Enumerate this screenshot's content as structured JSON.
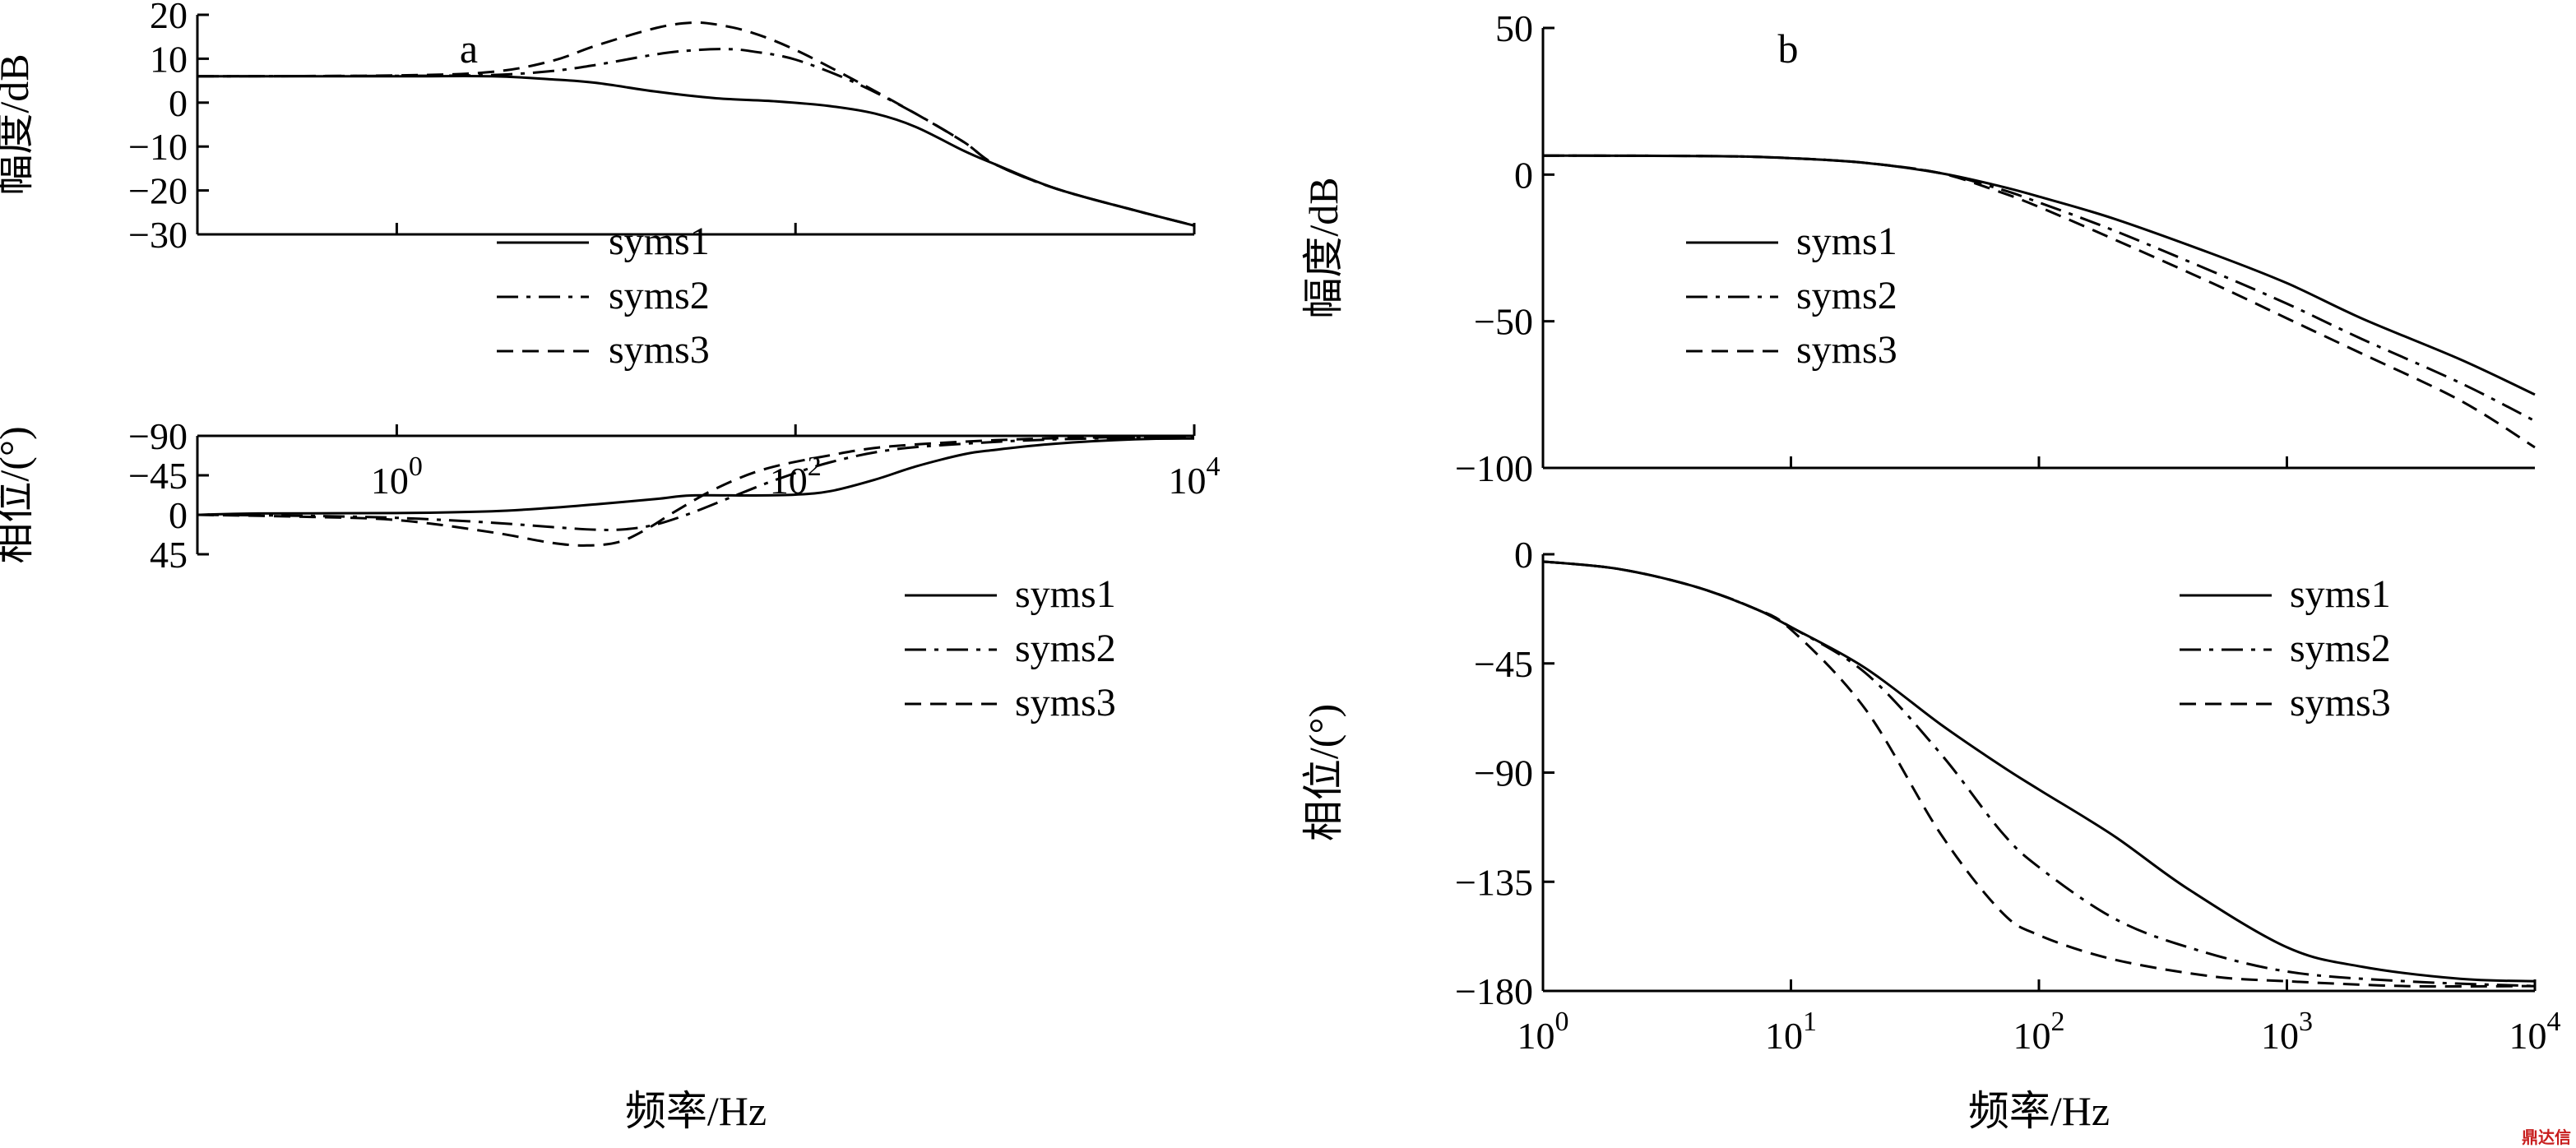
{
  "colors": {
    "line": "#000000",
    "watermark": "#c81e1e"
  },
  "watermark": {
    "text": "鼎达信"
  },
  "chart_data": [
    {
      "id": "a-mag",
      "type": "line",
      "panel_label": "a",
      "title": "",
      "xlabel": "",
      "ylabel": "幅度/dB",
      "xscale": "log",
      "xlim": [
        0.1,
        10000
      ],
      "ylim": [
        -30,
        20
      ],
      "xticks": [
        1,
        100,
        10000
      ],
      "xtick_labels": [],
      "yticks": [
        20,
        10,
        0,
        -10,
        -20,
        -30
      ],
      "ytick_labels": [
        "20",
        "10",
        "0",
        "−10",
        "−20",
        "−30"
      ],
      "legend": {
        "position": "center",
        "entries": [
          "syms1",
          "syms2",
          "syms3"
        ]
      },
      "series": [
        {
          "name": "syms1",
          "style": "solid",
          "points": [
            [
              0.1,
              6
            ],
            [
              1,
              6
            ],
            [
              3,
              6
            ],
            [
              6,
              5.3
            ],
            [
              10,
              4.5
            ],
            [
              20,
              2.5
            ],
            [
              40,
              1
            ],
            [
              80,
              0.3
            ],
            [
              150,
              -0.8
            ],
            [
              250,
              -2.5
            ],
            [
              400,
              -5.5
            ],
            [
              700,
              -11
            ],
            [
              1000,
              -14
            ],
            [
              2000,
              -19.5
            ],
            [
              5000,
              -24.5
            ],
            [
              10000,
              -28
            ]
          ]
        },
        {
          "name": "syms2",
          "style": "dashdot",
          "points": [
            [
              0.1,
              6
            ],
            [
              1,
              6.1
            ],
            [
              3,
              6.3
            ],
            [
              6,
              7.2
            ],
            [
              10,
              8.6
            ],
            [
              20,
              11
            ],
            [
              30,
              11.9
            ],
            [
              45,
              12.2
            ],
            [
              60,
              11.7
            ],
            [
              100,
              9.8
            ],
            [
              200,
              4.5
            ],
            [
              400,
              -2.5
            ],
            [
              700,
              -9
            ],
            [
              1000,
              -14
            ],
            [
              2000,
              -19.5
            ],
            [
              5000,
              -24.5
            ],
            [
              10000,
              -28
            ]
          ]
        },
        {
          "name": "syms3",
          "style": "dashed",
          "points": [
            [
              0.1,
              6
            ],
            [
              1,
              6.2
            ],
            [
              3,
              7
            ],
            [
              6,
              9.5
            ],
            [
              10,
              13
            ],
            [
              20,
              17
            ],
            [
              30,
              18.2
            ],
            [
              40,
              17.8
            ],
            [
              60,
              16
            ],
            [
              100,
              12
            ],
            [
              200,
              5
            ],
            [
              400,
              -2.5
            ],
            [
              700,
              -9
            ],
            [
              1000,
              -14
            ],
            [
              2000,
              -19.5
            ],
            [
              5000,
              -24.5
            ],
            [
              10000,
              -28
            ]
          ]
        }
      ]
    },
    {
      "id": "a-phase",
      "type": "line",
      "panel_label": "",
      "title": "",
      "xlabel": "频率/Hz",
      "ylabel": "相位/(°)",
      "xscale": "log",
      "xlim": [
        0.1,
        10000
      ],
      "ylim": [
        -90,
        45
      ],
      "xticks": [
        1,
        100,
        10000
      ],
      "xtick_labels": [
        {
          "base": "10",
          "exp": "0"
        },
        {
          "base": "10",
          "exp": "2"
        },
        {
          "base": "10",
          "exp": "4"
        }
      ],
      "yticks": [
        45,
        0,
        -45,
        -90
      ],
      "ytick_labels": [
        "45",
        "0",
        "−45",
        "−90"
      ],
      "legend": {
        "position": "top-right",
        "entries": [
          "syms1",
          "syms2",
          "syms3"
        ]
      },
      "series": [
        {
          "name": "syms1",
          "style": "solid",
          "points": [
            [
              0.1,
              0
            ],
            [
              0.2,
              -1.5
            ],
            [
              1,
              -2
            ],
            [
              3,
              -4
            ],
            [
              6,
              -8
            ],
            [
              10,
              -12
            ],
            [
              20,
              -18
            ],
            [
              30,
              -22
            ],
            [
              60,
              -22
            ],
            [
              100,
              -23
            ],
            [
              150,
              -27
            ],
            [
              250,
              -40
            ],
            [
              400,
              -55
            ],
            [
              700,
              -69
            ],
            [
              1000,
              -74
            ],
            [
              2000,
              -81
            ],
            [
              5000,
              -86
            ],
            [
              10000,
              -87
            ]
          ]
        },
        {
          "name": "syms2",
          "style": "dashdot",
          "points": [
            [
              0.1,
              0
            ],
            [
              0.3,
              1
            ],
            [
              1,
              3.5
            ],
            [
              3,
              9
            ],
            [
              6,
              14
            ],
            [
              10,
              17
            ],
            [
              14,
              16.5
            ],
            [
              20,
              11
            ],
            [
              30,
              -2
            ],
            [
              50,
              -22
            ],
            [
              80,
              -40
            ],
            [
              150,
              -60
            ],
            [
              300,
              -74
            ],
            [
              700,
              -81
            ],
            [
              2000,
              -86
            ],
            [
              10000,
              -89
            ]
          ]
        },
        {
          "name": "syms3",
          "style": "dashed",
          "points": [
            [
              0.1,
              0
            ],
            [
              0.3,
              2
            ],
            [
              1,
              6
            ],
            [
              3,
              20
            ],
            [
              6,
              32
            ],
            [
              9,
              35
            ],
            [
              13,
              31
            ],
            [
              18,
              16
            ],
            [
              25,
              -4
            ],
            [
              40,
              -30
            ],
            [
              70,
              -52
            ],
            [
              150,
              -68
            ],
            [
              300,
              -78
            ],
            [
              1000,
              -85
            ],
            [
              3000,
              -88
            ],
            [
              10000,
              -89
            ]
          ]
        }
      ]
    },
    {
      "id": "b-mag",
      "type": "line",
      "panel_label": "b",
      "title": "",
      "xlabel": "",
      "ylabel": "幅度/dB",
      "xscale": "log",
      "xlim": [
        1,
        10000
      ],
      "ylim": [
        -100,
        50
      ],
      "xticks": [
        10,
        100,
        1000
      ],
      "xtick_labels": [],
      "yticks": [
        50,
        0,
        -50,
        -100
      ],
      "ytick_labels": [
        "50",
        "0",
        "−50",
        "−100"
      ],
      "legend": {
        "position": "top-right",
        "entries": [
          "syms1",
          "syms2",
          "syms3"
        ]
      },
      "series": [
        {
          "name": "syms1",
          "style": "solid",
          "points": [
            [
              1,
              6.5
            ],
            [
              5,
              6.3
            ],
            [
              10,
              5.6
            ],
            [
              20,
              4
            ],
            [
              40,
              0.5
            ],
            [
              70,
              -4
            ],
            [
              100,
              -7.5
            ],
            [
              200,
              -15
            ],
            [
              500,
              -27
            ],
            [
              1000,
              -37
            ],
            [
              2000,
              -49
            ],
            [
              5000,
              -63
            ],
            [
              10000,
              -75
            ]
          ]
        },
        {
          "name": "syms2",
          "style": "dashdot",
          "points": [
            [
              1,
              6.5
            ],
            [
              5,
              6.3
            ],
            [
              10,
              5.6
            ],
            [
              20,
              4
            ],
            [
              40,
              0.5
            ],
            [
              70,
              -5
            ],
            [
              100,
              -9.5
            ],
            [
              200,
              -19
            ],
            [
              500,
              -33
            ],
            [
              1000,
              -44
            ],
            [
              2000,
              -56
            ],
            [
              5000,
              -71
            ],
            [
              10000,
              -84
            ]
          ]
        },
        {
          "name": "syms3",
          "style": "dashed",
          "points": [
            [
              1,
              6.5
            ],
            [
              5,
              6.3
            ],
            [
              10,
              5.6
            ],
            [
              20,
              4
            ],
            [
              40,
              0.5
            ],
            [
              70,
              -6
            ],
            [
              100,
              -11
            ],
            [
              200,
              -22
            ],
            [
              500,
              -37
            ],
            [
              1000,
              -49
            ],
            [
              2000,
              -61
            ],
            [
              5000,
              -77
            ],
            [
              10000,
              -93
            ]
          ]
        }
      ]
    },
    {
      "id": "b-phase",
      "type": "line",
      "panel_label": "",
      "title": "",
      "xlabel": "频率/Hz",
      "ylabel": "相位/(°)",
      "xscale": "log",
      "xlim": [
        1,
        10000
      ],
      "ylim": [
        -180,
        0
      ],
      "xticks": [
        1,
        10,
        100,
        1000,
        10000
      ],
      "xtick_labels": [
        {
          "base": "10",
          "exp": "0"
        },
        {
          "base": "10",
          "exp": "1"
        },
        {
          "base": "10",
          "exp": "2"
        },
        {
          "base": "10",
          "exp": "3"
        },
        {
          "base": "10",
          "exp": "4"
        }
      ],
      "yticks": [
        0,
        -45,
        -90,
        -135,
        -180
      ],
      "ytick_labels": [
        "0",
        "−45",
        "−90",
        "−135",
        "−180"
      ],
      "legend": {
        "position": "top-right",
        "entries": [
          "syms1",
          "syms2",
          "syms3"
        ]
      },
      "series": [
        {
          "name": "syms1",
          "style": "solid",
          "points": [
            [
              1,
              -3
            ],
            [
              2,
              -6
            ],
            [
              4,
              -13
            ],
            [
              7,
              -22
            ],
            [
              10,
              -30
            ],
            [
              20,
              -47
            ],
            [
              40,
              -70
            ],
            [
              70,
              -87
            ],
            [
              100,
              -97
            ],
            [
              200,
              -116
            ],
            [
              400,
              -138
            ],
            [
              1000,
              -162
            ],
            [
              2000,
              -170
            ],
            [
              5000,
              -175
            ],
            [
              10000,
              -176
            ]
          ]
        },
        {
          "name": "syms2",
          "style": "dashdot",
          "points": [
            [
              1,
              -3
            ],
            [
              2,
              -6
            ],
            [
              4,
              -13
            ],
            [
              7,
              -22
            ],
            [
              10,
              -30
            ],
            [
              20,
              -49
            ],
            [
              40,
              -82
            ],
            [
              70,
              -114
            ],
            [
              100,
              -129
            ],
            [
              200,
              -150
            ],
            [
              400,
              -162
            ],
            [
              1000,
              -172
            ],
            [
              3000,
              -176
            ],
            [
              10000,
              -178
            ]
          ]
        },
        {
          "name": "syms3",
          "style": "dashed",
          "points": [
            [
              1,
              -3
            ],
            [
              2,
              -6
            ],
            [
              4,
              -13
            ],
            [
              7,
              -22
            ],
            [
              10,
              -31
            ],
            [
              20,
              -64
            ],
            [
              40,
              -115
            ],
            [
              70,
              -147
            ],
            [
              100,
              -157
            ],
            [
              200,
              -167
            ],
            [
              500,
              -174
            ],
            [
              1000,
              -176
            ],
            [
              3000,
              -178
            ],
            [
              10000,
              -178
            ]
          ]
        }
      ]
    }
  ]
}
